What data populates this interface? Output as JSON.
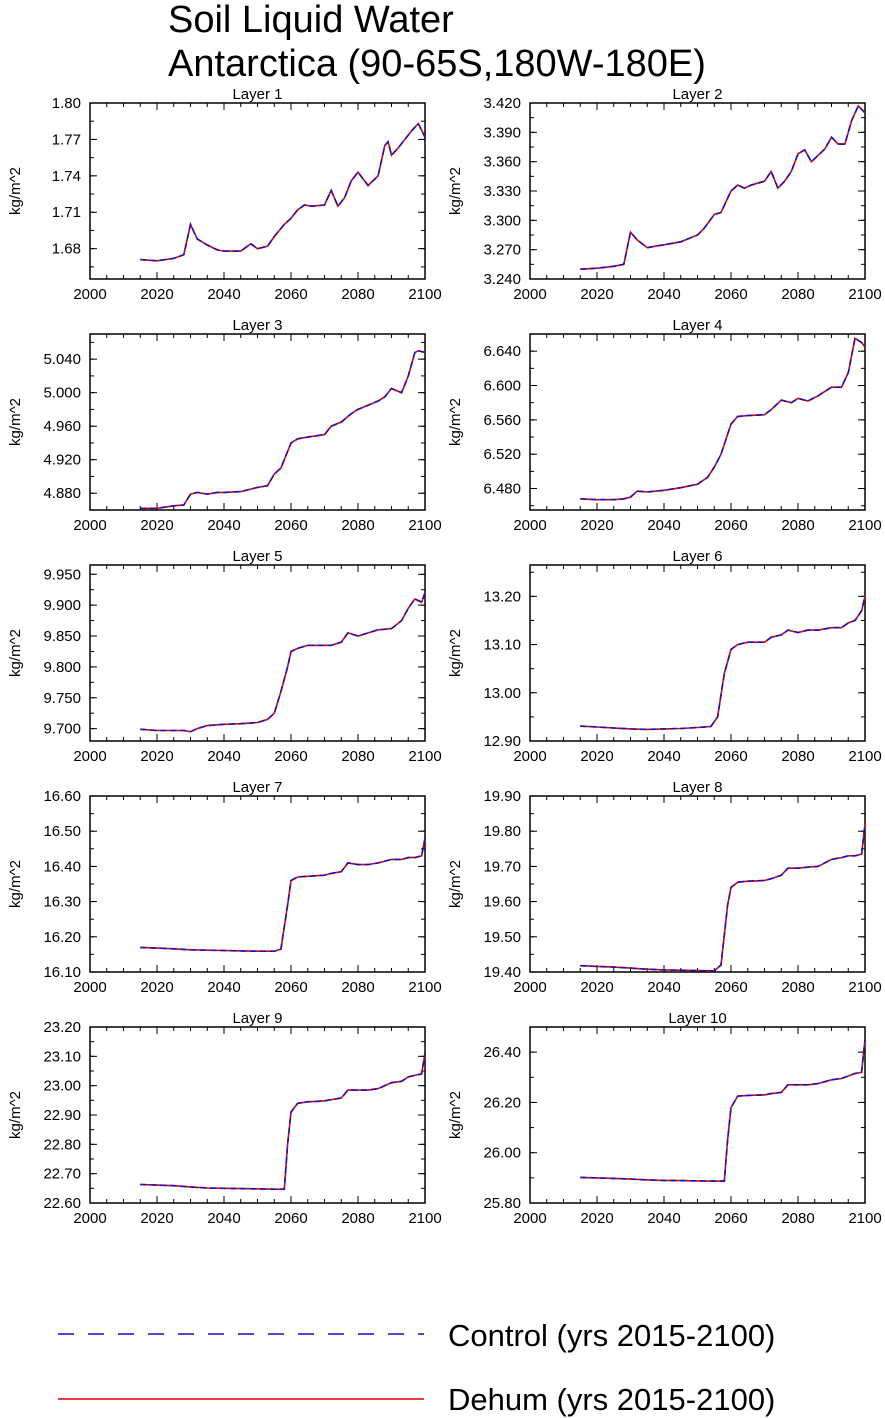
{
  "figure": {
    "title_lines": [
      "Soil Liquid Water",
      "Antarctica (90-65S,180W-180E)"
    ]
  },
  "legend": {
    "items": [
      {
        "label": "Control (yrs 2015-2100)",
        "color": "#1010d0",
        "style": "dashed"
      },
      {
        "label": "Dehum (yrs 2015-2100)",
        "color": "#e00000",
        "style": "solid"
      }
    ]
  },
  "chart_data": [
    {
      "type": "line",
      "title": "Layer 1",
      "ylabel": "kg/m^2",
      "xlim": [
        2000,
        2100
      ],
      "xticks": [
        "2000",
        "2020",
        "2040",
        "2060",
        "2080",
        "2100"
      ],
      "ylim": [
        1.655,
        1.8
      ],
      "yticks": [
        "1.68",
        "1.71",
        "1.74",
        "1.77",
        "1.80"
      ],
      "x": [
        2015,
        2020,
        2025,
        2028,
        2030,
        2032,
        2035,
        2038,
        2040,
        2045,
        2048,
        2050,
        2053,
        2055,
        2058,
        2060,
        2062,
        2064,
        2066,
        2070,
        2072,
        2074,
        2076,
        2078,
        2080,
        2083,
        2086,
        2088,
        2089,
        2090,
        2092,
        2094,
        2096,
        2098,
        2100
      ],
      "values": [
        1.671,
        1.67,
        1.672,
        1.675,
        1.7,
        1.688,
        1.683,
        1.679,
        1.678,
        1.678,
        1.684,
        1.68,
        1.682,
        1.69,
        1.7,
        1.705,
        1.712,
        1.716,
        1.715,
        1.716,
        1.728,
        1.715,
        1.722,
        1.736,
        1.743,
        1.732,
        1.74,
        1.765,
        1.768,
        1.757,
        1.763,
        1.77,
        1.777,
        1.783,
        1.772
      ]
    },
    {
      "type": "line",
      "title": "Layer 2",
      "ylabel": "kg/m^2",
      "xlim": [
        2000,
        2100
      ],
      "xticks": [
        "2000",
        "2020",
        "2040",
        "2060",
        "2080",
        "2100"
      ],
      "ylim": [
        3.24,
        3.42
      ],
      "yticks": [
        "3.240",
        "3.270",
        "3.300",
        "3.330",
        "3.360",
        "3.390",
        "3.420"
      ],
      "x": [
        2015,
        2020,
        2025,
        2028,
        2030,
        2032,
        2035,
        2038,
        2040,
        2045,
        2050,
        2052,
        2055,
        2057,
        2060,
        2062,
        2064,
        2066,
        2070,
        2072,
        2074,
        2076,
        2078,
        2080,
        2082,
        2084,
        2088,
        2090,
        2092,
        2094,
        2096,
        2098,
        2100
      ],
      "values": [
        3.25,
        3.251,
        3.253,
        3.255,
        3.288,
        3.28,
        3.272,
        3.274,
        3.275,
        3.278,
        3.285,
        3.292,
        3.306,
        3.308,
        3.33,
        3.336,
        3.333,
        3.336,
        3.34,
        3.35,
        3.333,
        3.34,
        3.35,
        3.368,
        3.372,
        3.36,
        3.373,
        3.385,
        3.378,
        3.378,
        3.402,
        3.417,
        3.41
      ]
    },
    {
      "type": "line",
      "title": "Layer 3",
      "ylabel": "kg/m^2",
      "xlim": [
        2000,
        2100
      ],
      "xticks": [
        "2000",
        "2020",
        "2040",
        "2060",
        "2080",
        "2100"
      ],
      "ylim": [
        4.86,
        5.07
      ],
      "yticks": [
        "4.880",
        "4.920",
        "4.960",
        "5.000",
        "5.040"
      ],
      "x": [
        2015,
        2020,
        2025,
        2028,
        2030,
        2032,
        2035,
        2038,
        2040,
        2045,
        2050,
        2053,
        2055,
        2057,
        2060,
        2062,
        2065,
        2070,
        2072,
        2075,
        2078,
        2080,
        2083,
        2086,
        2088,
        2090,
        2093,
        2095,
        2097,
        2098,
        2100
      ],
      "values": [
        4.862,
        4.862,
        4.865,
        4.866,
        4.879,
        4.881,
        4.879,
        4.881,
        4.881,
        4.882,
        4.887,
        4.889,
        4.903,
        4.91,
        4.94,
        4.945,
        4.947,
        4.95,
        4.96,
        4.965,
        4.975,
        4.98,
        4.985,
        4.99,
        4.995,
        5.005,
        5.0,
        5.02,
        5.048,
        5.05,
        5.048
      ]
    },
    {
      "type": "line",
      "title": "Layer 4",
      "ylabel": "kg/m^2",
      "xlim": [
        2000,
        2100
      ],
      "xticks": [
        "2000",
        "2020",
        "2040",
        "2060",
        "2080",
        "2100"
      ],
      "ylim": [
        6.455,
        6.66
      ],
      "yticks": [
        "6.480",
        "6.520",
        "6.560",
        "6.600",
        "6.640"
      ],
      "x": [
        2015,
        2020,
        2025,
        2028,
        2030,
        2032,
        2035,
        2040,
        2045,
        2050,
        2053,
        2055,
        2057,
        2060,
        2062,
        2065,
        2070,
        2072,
        2075,
        2078,
        2080,
        2083,
        2086,
        2090,
        2093,
        2095,
        2097,
        2099,
        2100
      ],
      "values": [
        6.468,
        6.467,
        6.467,
        6.468,
        6.47,
        6.477,
        6.476,
        6.478,
        6.481,
        6.485,
        6.493,
        6.505,
        6.52,
        6.555,
        6.564,
        6.565,
        6.566,
        6.572,
        6.583,
        6.58,
        6.585,
        6.582,
        6.588,
        6.598,
        6.598,
        6.615,
        6.655,
        6.65,
        6.645
      ]
    },
    {
      "type": "line",
      "title": "Layer 5",
      "ylabel": "kg/m^2",
      "xlim": [
        2000,
        2100
      ],
      "xticks": [
        "2000",
        "2020",
        "2040",
        "2060",
        "2080",
        "2100"
      ],
      "ylim": [
        9.68,
        9.965
      ],
      "yticks": [
        "9.700",
        "9.750",
        "9.800",
        "9.850",
        "9.900",
        "9.950"
      ],
      "x": [
        2015,
        2020,
        2025,
        2028,
        2030,
        2032,
        2035,
        2040,
        2045,
        2050,
        2053,
        2055,
        2057,
        2059,
        2060,
        2062,
        2065,
        2070,
        2072,
        2075,
        2077,
        2080,
        2083,
        2086,
        2090,
        2093,
        2095,
        2097,
        2099,
        2100
      ],
      "values": [
        9.699,
        9.697,
        9.697,
        9.697,
        9.695,
        9.7,
        9.705,
        9.707,
        9.708,
        9.71,
        9.715,
        9.725,
        9.76,
        9.8,
        9.825,
        9.83,
        9.835,
        9.835,
        9.835,
        9.84,
        9.855,
        9.85,
        9.855,
        9.86,
        9.862,
        9.875,
        9.895,
        9.91,
        9.905,
        9.92
      ]
    },
    {
      "type": "line",
      "title": "Layer 6",
      "ylabel": "kg/m^2",
      "xlim": [
        2000,
        2100
      ],
      "xticks": [
        "2000",
        "2020",
        "2040",
        "2060",
        "2080",
        "2100"
      ],
      "ylim": [
        12.9,
        13.265
      ],
      "yticks": [
        "12.90",
        "13.00",
        "13.10",
        "13.20"
      ],
      "x": [
        2015,
        2020,
        2025,
        2030,
        2035,
        2040,
        2045,
        2050,
        2054,
        2056,
        2058,
        2060,
        2062,
        2065,
        2070,
        2072,
        2075,
        2077,
        2080,
        2083,
        2086,
        2090,
        2093,
        2095,
        2097,
        2099,
        2100
      ],
      "values": [
        12.931,
        12.929,
        12.927,
        12.925,
        12.924,
        12.925,
        12.926,
        12.928,
        12.93,
        12.95,
        13.04,
        13.09,
        13.1,
        13.105,
        13.105,
        13.115,
        13.12,
        13.13,
        13.125,
        13.13,
        13.13,
        13.135,
        13.135,
        13.145,
        13.15,
        13.17,
        13.2
      ]
    },
    {
      "type": "line",
      "title": "Layer 7",
      "ylabel": "kg/m^2",
      "xlim": [
        2000,
        2100
      ],
      "xticks": [
        "2000",
        "2020",
        "2040",
        "2060",
        "2080",
        "2100"
      ],
      "ylim": [
        16.1,
        16.6
      ],
      "yticks": [
        "16.10",
        "16.20",
        "16.30",
        "16.40",
        "16.50",
        "16.60"
      ],
      "x": [
        2015,
        2020,
        2025,
        2030,
        2035,
        2040,
        2045,
        2050,
        2055,
        2057,
        2059,
        2060,
        2062,
        2065,
        2070,
        2072,
        2075,
        2077,
        2080,
        2083,
        2086,
        2090,
        2093,
        2095,
        2097,
        2099,
        2100
      ],
      "values": [
        16.17,
        16.168,
        16.166,
        16.163,
        16.162,
        16.161,
        16.16,
        16.159,
        16.159,
        16.165,
        16.29,
        16.36,
        16.37,
        16.372,
        16.375,
        16.38,
        16.385,
        16.41,
        16.405,
        16.405,
        16.41,
        16.42,
        16.42,
        16.425,
        16.425,
        16.43,
        16.48
      ]
    },
    {
      "type": "line",
      "title": "Layer 8",
      "ylabel": "kg/m^2",
      "xlim": [
        2000,
        2100
      ],
      "xticks": [
        "2000",
        "2020",
        "2040",
        "2060",
        "2080",
        "2100"
      ],
      "ylim": [
        19.4,
        19.9
      ],
      "yticks": [
        "19.40",
        "19.50",
        "19.60",
        "19.70",
        "19.80",
        "19.90"
      ],
      "x": [
        2015,
        2020,
        2025,
        2030,
        2035,
        2040,
        2045,
        2050,
        2055,
        2057,
        2059,
        2060,
        2062,
        2065,
        2070,
        2072,
        2075,
        2077,
        2080,
        2083,
        2086,
        2090,
        2093,
        2095,
        2097,
        2099,
        2100
      ],
      "values": [
        19.418,
        19.416,
        19.414,
        19.411,
        19.408,
        19.406,
        19.405,
        19.404,
        19.403,
        19.42,
        19.59,
        19.64,
        19.655,
        19.658,
        19.66,
        19.665,
        19.675,
        19.695,
        19.695,
        19.698,
        19.7,
        19.72,
        19.725,
        19.73,
        19.73,
        19.735,
        19.82
      ]
    },
    {
      "type": "line",
      "title": "Layer 9",
      "ylabel": "kg/m^2",
      "xlim": [
        2000,
        2100
      ],
      "xticks": [
        "2000",
        "2020",
        "2040",
        "2060",
        "2080",
        "2100"
      ],
      "ylim": [
        22.6,
        23.2
      ],
      "yticks": [
        "22.60",
        "22.70",
        "22.80",
        "22.90",
        "23.00",
        "23.10",
        "23.20"
      ],
      "x": [
        2015,
        2020,
        2025,
        2030,
        2035,
        2040,
        2045,
        2050,
        2055,
        2058,
        2059,
        2060,
        2062,
        2065,
        2070,
        2072,
        2075,
        2077,
        2080,
        2083,
        2086,
        2090,
        2093,
        2095,
        2097,
        2099,
        2100
      ],
      "values": [
        22.663,
        22.661,
        22.659,
        22.655,
        22.651,
        22.65,
        22.649,
        22.648,
        22.647,
        22.647,
        22.8,
        22.91,
        22.94,
        22.945,
        22.948,
        22.952,
        22.958,
        22.985,
        22.985,
        22.985,
        22.99,
        23.01,
        23.015,
        23.03,
        23.035,
        23.04,
        23.11
      ]
    },
    {
      "type": "line",
      "title": "Layer 10",
      "ylabel": "kg/m^2",
      "xlim": [
        2000,
        2100
      ],
      "xticks": [
        "2000",
        "2020",
        "2040",
        "2060",
        "2080",
        "2100"
      ],
      "ylim": [
        25.8,
        26.5
      ],
      "yticks": [
        "25.80",
        "26.00",
        "26.20",
        "26.40"
      ],
      "x": [
        2015,
        2020,
        2025,
        2030,
        2035,
        2040,
        2045,
        2050,
        2055,
        2058,
        2059,
        2060,
        2062,
        2065,
        2070,
        2072,
        2075,
        2077,
        2080,
        2083,
        2086,
        2090,
        2093,
        2095,
        2097,
        2099,
        2100
      ],
      "values": [
        25.902,
        25.9,
        25.898,
        25.895,
        25.892,
        25.89,
        25.889,
        25.888,
        25.887,
        25.887,
        26.05,
        26.18,
        26.225,
        26.228,
        26.23,
        26.235,
        26.24,
        26.27,
        26.27,
        26.27,
        26.275,
        26.29,
        26.295,
        26.305,
        26.315,
        26.32,
        26.45
      ]
    }
  ]
}
